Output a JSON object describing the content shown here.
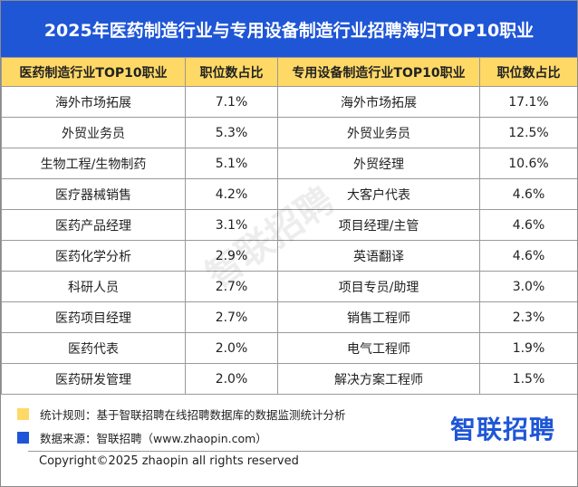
{
  "title": "2025年医药制造行业与专用设备制造行业招聘海归TOP10职业",
  "table": {
    "headers": [
      "医药制造行业TOP10职业",
      "职位数占比",
      "专用设备制造行业TOP10职业",
      "职位数占比"
    ],
    "rows": [
      [
        "海外市场拓展",
        "7.1%",
        "海外市场拓展",
        "17.1%"
      ],
      [
        "外贸业务员",
        "5.3%",
        "外贸业务员",
        "12.5%"
      ],
      [
        "生物工程/生物制药",
        "5.1%",
        "外贸经理",
        "10.6%"
      ],
      [
        "医疗器械销售",
        "4.2%",
        "大客户代表",
        "4.6%"
      ],
      [
        "医药产品经理",
        "3.1%",
        "项目经理/主管",
        "4.6%"
      ],
      [
        "医药化学分析",
        "2.9%",
        "英语翻译",
        "4.6%"
      ],
      [
        "科研人员",
        "2.7%",
        "项目专员/助理",
        "3.0%"
      ],
      [
        "医药项目经理",
        "2.7%",
        "销售工程师",
        "2.3%"
      ],
      [
        "医药代表",
        "2.0%",
        "电气工程师",
        "1.9%"
      ],
      [
        "医药研发管理",
        "2.0%",
        "解决方案工程师",
        "1.5%"
      ]
    ]
  },
  "watermark": "智联招聘",
  "footer": {
    "notes": [
      "统计规则：基于智联招聘在线招聘数据库的数据监测统计分析",
      "数据来源：智联招聘（www.zhaopin.com）"
    ],
    "logo": "智联招聘",
    "copyright": "Copyright©2025 zhaopin all rights reserved"
  }
}
